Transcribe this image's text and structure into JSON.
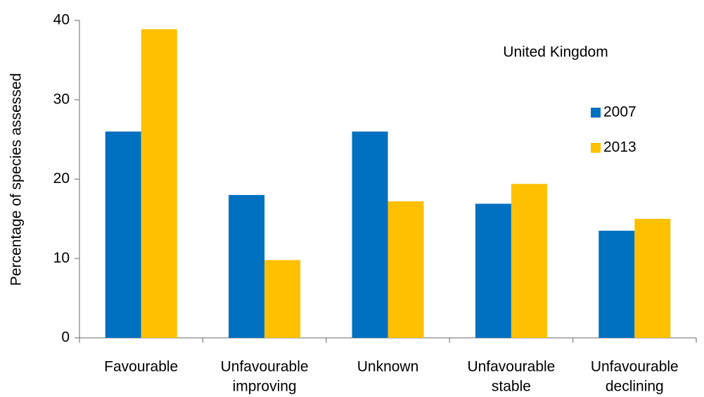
{
  "chart_data": {
    "type": "bar",
    "annotation": "United Kingdom",
    "y_label": "Percentage of species assessed",
    "categories": [
      [
        "Favourable"
      ],
      [
        "Unfavourable",
        "improving"
      ],
      [
        "Unknown"
      ],
      [
        "Unfavourable",
        "stable"
      ],
      [
        "Unfavourable",
        "declining"
      ]
    ],
    "series": [
      {
        "name": "2007",
        "color": "#0070c0",
        "values": [
          26,
          18,
          26,
          16.9,
          13.5
        ]
      },
      {
        "name": "2013",
        "color": "#ffc000",
        "values": [
          38.9,
          9.8,
          17.2,
          19.4,
          15
        ]
      }
    ],
    "ylim": [
      0,
      40
    ],
    "yticks": [
      0,
      10,
      20,
      30,
      40
    ]
  }
}
